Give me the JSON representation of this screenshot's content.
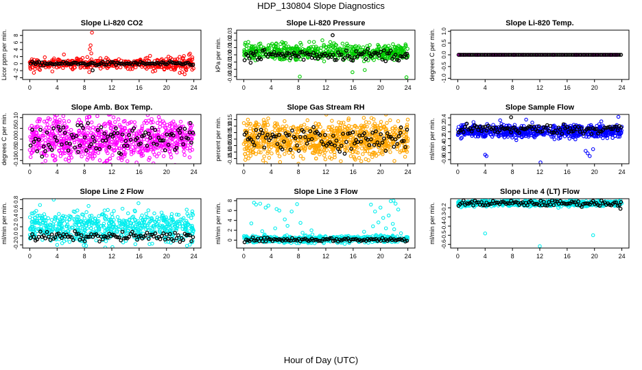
{
  "page": {
    "title": "HDP_130804  Slope Diagnostics",
    "xlabel": "Hour of Day (UTC)"
  },
  "chart_data": [
    {
      "type": "scatter",
      "title": "Slope Li-820 CO2",
      "ylabel": "Licor ppm per min.",
      "color": "#ff0000",
      "xlim": [
        0,
        24
      ],
      "xticks": [
        0,
        4,
        8,
        12,
        16,
        20,
        24
      ],
      "ylim": [
        -4.5,
        9.5
      ],
      "yticks": [
        -4,
        -2,
        0,
        2,
        4,
        6,
        8
      ],
      "ytick_labels": [
        "-4",
        "-2",
        "0",
        "2",
        "4",
        "6",
        "8"
      ],
      "series": [
        {
          "name": "all",
          "center": 0,
          "spread": 0.7,
          "count": 420,
          "density_ramp": 0.8,
          "points": [
            [
              9.1,
              8.8
            ],
            [
              8.9,
              5.2
            ],
            [
              8.8,
              4.1
            ],
            [
              9.0,
              2.9
            ],
            [
              0.6,
              -2.6
            ],
            [
              1.5,
              -1.8
            ],
            [
              3.3,
              -2.2
            ],
            [
              5.0,
              2.6
            ],
            [
              2.2,
              1.8
            ],
            [
              17.6,
              2.2
            ],
            [
              20.3,
              2.0
            ],
            [
              22.4,
              1.6
            ],
            [
              8.7,
              -2.4
            ]
          ]
        },
        {
          "name": "hourly",
          "center": 0,
          "spread": 0.25,
          "count": 100,
          "points": [
            [
              9.2,
              -1.9
            ]
          ]
        }
      ]
    },
    {
      "type": "scatter",
      "title": "Slope Li-820 Pressure",
      "ylabel": "kPa per min.",
      "color": "#00cc00",
      "xlim": [
        0,
        24
      ],
      "xticks": [
        0,
        4,
        8,
        12,
        16,
        20,
        24
      ],
      "ylim": [
        -0.034,
        0.034
      ],
      "yticks": [
        -0.03,
        -0.02,
        -0.01,
        0.0,
        0.01,
        0.02,
        0.03
      ],
      "ytick_labels": [
        "-0.03",
        "-0.02",
        "-0.01",
        "0.00",
        "0.01",
        "0.02",
        "0.03"
      ],
      "series": [
        {
          "name": "all",
          "center": 0.004,
          "spread": 0.0055,
          "count": 560,
          "density_ramp": 0,
          "points": [
            [
              8.2,
              -0.03
            ],
            [
              23.8,
              -0.031
            ],
            [
              15.9,
              -0.024
            ],
            [
              17.7,
              -0.021
            ],
            [
              11.5,
              0.02
            ],
            [
              13.2,
              0.016
            ]
          ]
        },
        {
          "name": "hourly",
          "center": 0.0,
          "spread": 0.004,
          "count": 100,
          "points": [
            [
              13.0,
              0.027
            ],
            [
              1.0,
              -0.011
            ],
            [
              23.8,
              -0.004
            ]
          ]
        }
      ]
    },
    {
      "type": "scatter",
      "title": "Slope Li-820 Temp.",
      "ylabel": "degrees C per min.",
      "color": "#ff00ff",
      "xlim": [
        0,
        24
      ],
      "xticks": [
        0,
        4,
        8,
        12,
        16,
        20,
        24
      ],
      "ylim": [
        -1.05,
        1.05
      ],
      "yticks": [
        -1.0,
        -0.5,
        0.0,
        0.5,
        1.0
      ],
      "ytick_labels": [
        "-1.0",
        "-0.5",
        "0.0",
        "0.5",
        "1.0"
      ],
      "series": [
        {
          "name": "all",
          "center": 0,
          "spread": 0.0,
          "count": 90,
          "density_ramp": 0,
          "points": []
        },
        {
          "name": "hourly",
          "center": 0,
          "spread": 0.0,
          "count": 96,
          "points": []
        }
      ]
    },
    {
      "type": "scatter",
      "title": "Slope Amb. Box Temp.",
      "ylabel": "degrees C per min.",
      "color": "#ff00ff",
      "xlim": [
        0,
        24
      ],
      "xticks": [
        0,
        4,
        8,
        12,
        16,
        20,
        24
      ],
      "ylim": [
        -0.115,
        0.115
      ],
      "yticks": [
        -0.1,
        -0.05,
        0.0,
        0.05,
        0.1
      ],
      "ytick_labels": [
        "-0.10",
        "-0.05",
        "0.00",
        "0.05",
        "0.10"
      ],
      "series": [
        {
          "name": "all",
          "center": 0.0,
          "spread": 0.05,
          "count": 820,
          "density_ramp": 0,
          "points": []
        },
        {
          "name": "hourly",
          "center": 0.0,
          "spread": 0.035,
          "count": 100,
          "points": [
            [
              23.5,
              0.075
            ],
            [
              22.0,
              0.05
            ],
            [
              7.0,
              0.065
            ]
          ]
        }
      ]
    },
    {
      "type": "scatter",
      "title": "Slope Gas Stream RH",
      "ylabel": "percent per min.",
      "color": "#ffa500",
      "xlim": [
        0,
        24
      ],
      "xticks": [
        0,
        4,
        8,
        12,
        16,
        20,
        24
      ],
      "ylim": [
        -0.19,
        0.19
      ],
      "yticks": [
        -0.15,
        -0.1,
        -0.05,
        0.0,
        0.05,
        0.1,
        0.15
      ],
      "ytick_labels": [
        "-0.15",
        "-0.10",
        "-0.05",
        "0.00",
        "0.05",
        "0.10",
        "0.15"
      ],
      "series": [
        {
          "name": "all",
          "center": 0.0,
          "spread": 0.07,
          "count": 880,
          "density_ramp": 0,
          "points": [
            [
              8.0,
              -0.19
            ],
            [
              20.8,
              0.19
            ],
            [
              0.6,
              0.15
            ],
            [
              14.2,
              -0.17
            ]
          ]
        },
        {
          "name": "hourly",
          "center": 0.0,
          "spread": 0.045,
          "count": 100,
          "points": [
            [
              23.0,
              0.09
            ]
          ]
        }
      ]
    },
    {
      "type": "scatter",
      "title": "Slope Sample Flow",
      "ylabel": "ml/min per min.",
      "color": "#0000ff",
      "xlim": [
        0,
        24
      ],
      "xticks": [
        0,
        4,
        8,
        12,
        16,
        20,
        24
      ],
      "ylim": [
        -0.92,
        0.5
      ],
      "yticks": [
        -0.8,
        -0.6,
        -0.4,
        -0.2,
        0.0,
        0.2,
        0.4
      ],
      "ytick_labels": [
        "-0.8",
        "-0.6",
        "-0.4",
        "-0.2",
        "0.0",
        "0.2",
        "0.4"
      ],
      "series": [
        {
          "name": "all",
          "center": 0.02,
          "spread": 0.09,
          "count": 700,
          "density_ramp": 0,
          "points": [
            [
              12.1,
              -0.88
            ],
            [
              4.2,
              -0.7
            ],
            [
              4.0,
              -0.66
            ],
            [
              19.3,
              -0.7
            ],
            [
              19.0,
              -0.62
            ],
            [
              18.7,
              -0.55
            ],
            [
              19.8,
              -0.5
            ],
            [
              23.5,
              0.43
            ],
            [
              10.0,
              0.35
            ],
            [
              6.2,
              0.33
            ],
            [
              2.3,
              0.28
            ],
            [
              21.0,
              0.3
            ]
          ]
        },
        {
          "name": "hourly",
          "center": 0.08,
          "spread": 0.07,
          "count": 100,
          "points": [
            [
              7.8,
              0.42
            ]
          ]
        }
      ]
    },
    {
      "type": "scatter",
      "title": "Slope Line 2 Flow",
      "ylabel": "ml/min per min.",
      "color": "#00eeee",
      "xlim": [
        0,
        24
      ],
      "xticks": [
        0,
        4,
        8,
        12,
        16,
        20,
        24
      ],
      "ylim": [
        -0.27,
        0.82
      ],
      "yticks": [
        -0.2,
        0.0,
        0.2,
        0.4,
        0.6,
        0.8
      ],
      "ytick_labels": [
        "-0.2",
        "0.0",
        "0.2",
        "0.4",
        "0.6",
        "0.8"
      ],
      "series": [
        {
          "name": "all",
          "center": 0.2,
          "spread": 0.17,
          "count": 640,
          "density_ramp": 0,
          "points": [
            [
              3.5,
              0.8
            ],
            [
              1.5,
              0.68
            ],
            [
              15.9,
              0.72
            ],
            [
              8.6,
              0.66
            ],
            [
              4.0,
              -0.2
            ],
            [
              7.9,
              -0.21
            ],
            [
              23.0,
              -0.22
            ]
          ]
        },
        {
          "name": "hourly",
          "center": -0.02,
          "spread": 0.05,
          "count": 100,
          "points": []
        }
      ]
    },
    {
      "type": "scatter",
      "title": "Slope Line 3 Flow",
      "ylabel": "ml/min per min.",
      "color": "#00eeee",
      "xlim": [
        0,
        24
      ],
      "xticks": [
        0,
        4,
        8,
        12,
        16,
        20,
        24
      ],
      "ylim": [
        -1.6,
        8.4
      ],
      "yticks": [
        0,
        2,
        4,
        6,
        8
      ],
      "ytick_labels": [
        "0",
        "2",
        "4",
        "6",
        "8"
      ],
      "series": [
        {
          "name": "all",
          "center": 0.2,
          "spread": 0.35,
          "count": 560,
          "density_ramp": 0,
          "points": [
            [
              1.5,
              7.6
            ],
            [
              1.8,
              7.2
            ],
            [
              2.4,
              7.4
            ],
            [
              3.2,
              6.6
            ],
            [
              3.6,
              7.0
            ],
            [
              4.8,
              6.3
            ],
            [
              5.2,
              6.0
            ],
            [
              6.0,
              4.2
            ],
            [
              7.0,
              5.8
            ],
            [
              7.8,
              7.3
            ],
            [
              1.1,
              3.4
            ],
            [
              2.7,
              1.8
            ],
            [
              4.6,
              2.4
            ],
            [
              6.4,
              2.9
            ],
            [
              8.3,
              3.5
            ],
            [
              9.9,
              2.0
            ],
            [
              8.6,
              1.5
            ],
            [
              18.6,
              7.2
            ],
            [
              19.2,
              5.8
            ],
            [
              20.0,
              6.6
            ],
            [
              20.8,
              2.4
            ],
            [
              21.5,
              7.9
            ],
            [
              21.9,
              8.0
            ],
            [
              22.2,
              7.4
            ],
            [
              22.6,
              6.2
            ],
            [
              21.2,
              5.0
            ],
            [
              21.8,
              3.3
            ],
            [
              22.0,
              2.2
            ],
            [
              19.7,
              3.6
            ],
            [
              20.4,
              4.5
            ],
            [
              18.9,
              2.8
            ],
            [
              23.0,
              1.4
            ],
            [
              17.6,
              1.7
            ]
          ]
        },
        {
          "name": "hourly",
          "center": 0.1,
          "spread": 0.2,
          "count": 100,
          "points": []
        }
      ]
    },
    {
      "type": "scatter",
      "title": "Slope Line 4 (LT) Flow",
      "ylabel": "ml/min per min.",
      "color": "#00eeee",
      "xlim": [
        0,
        24
      ],
      "xticks": [
        0,
        4,
        8,
        12,
        16,
        20,
        24
      ],
      "ylim": [
        -0.64,
        -0.1
      ],
      "yticks": [
        -0.6,
        -0.5,
        -0.4,
        -0.3,
        -0.2
      ],
      "ytick_labels": [
        "-0.6",
        "-0.5",
        "-0.4",
        "-0.3",
        "-0.2"
      ],
      "series": [
        {
          "name": "all",
          "center": -0.15,
          "spread": 0.016,
          "count": 640,
          "density_ramp": 0,
          "points": [
            [
              12.0,
              -0.62
            ],
            [
              4.0,
              -0.48
            ],
            [
              19.8,
              -0.5
            ]
          ]
        },
        {
          "name": "hourly",
          "center": -0.15,
          "spread": 0.015,
          "count": 100,
          "points": [
            [
              23.8,
              -0.21
            ]
          ]
        }
      ]
    }
  ]
}
